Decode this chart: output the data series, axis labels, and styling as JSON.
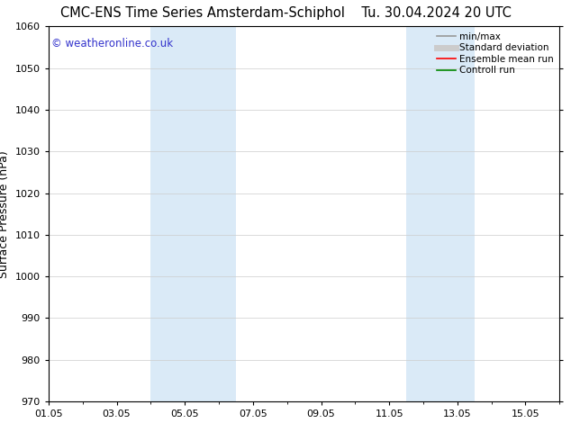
{
  "title_left": "CMC-ENS Time Series Amsterdam-Schiphol",
  "title_right": "Tu. 30.04.2024 20 UTC",
  "ylabel": "Surface Pressure (hPa)",
  "ylim": [
    970,
    1060
  ],
  "yticks": [
    970,
    980,
    990,
    1000,
    1010,
    1020,
    1030,
    1040,
    1050,
    1060
  ],
  "xlim": [
    0,
    15
  ],
  "xtick_positions": [
    0,
    2,
    4,
    6,
    8,
    10,
    12,
    14
  ],
  "xtick_labels": [
    "01.05",
    "03.05",
    "05.05",
    "07.05",
    "09.05",
    "11.05",
    "13.05",
    "15.05"
  ],
  "shaded_bands": [
    {
      "xmin": 3.0,
      "xmax": 5.5,
      "color": "#daeaf7"
    },
    {
      "xmin": 10.5,
      "xmax": 12.5,
      "color": "#daeaf7"
    }
  ],
  "watermark": "© weatheronline.co.uk",
  "watermark_color": "#3333cc",
  "legend_entries": [
    {
      "label": "min/max",
      "color": "#999999",
      "lw": 1.2
    },
    {
      "label": "Standard deviation",
      "color": "#cccccc",
      "lw": 5
    },
    {
      "label": "Ensemble mean run",
      "color": "#ff0000",
      "lw": 1.2
    },
    {
      "label": "Controll run",
      "color": "#008800",
      "lw": 1.2
    }
  ],
  "bg_color": "#ffffff",
  "grid_color": "#cccccc",
  "title_fontsize": 10.5,
  "ylabel_fontsize": 9,
  "tick_fontsize": 8,
  "legend_fontsize": 7.5,
  "watermark_fontsize": 8.5
}
